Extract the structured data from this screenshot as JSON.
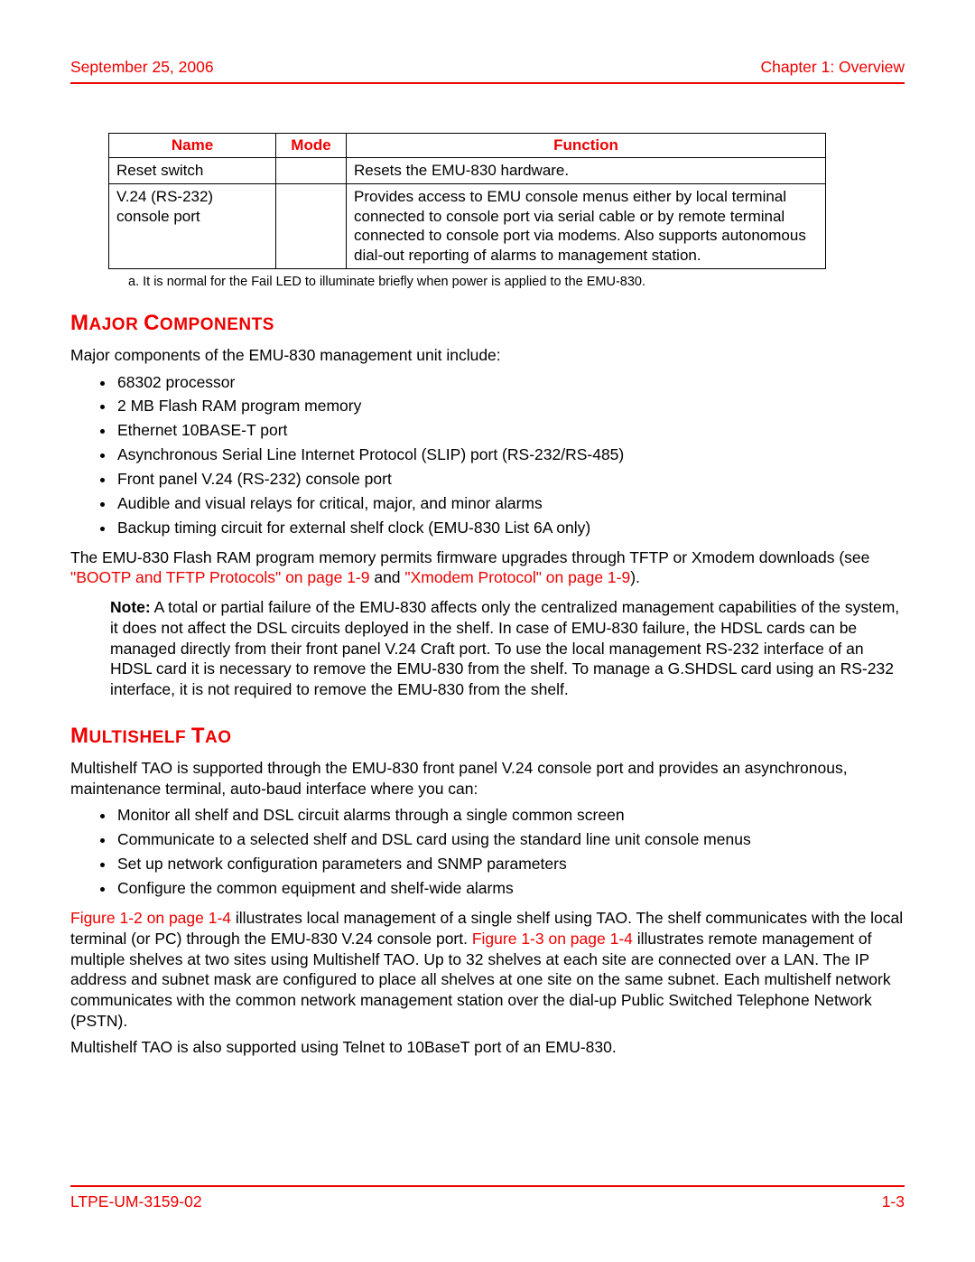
{
  "header": {
    "date": "September 25, 2006",
    "chapter": "Chapter 1: Overview"
  },
  "table": {
    "columns": [
      "Name",
      "Mode",
      "Function"
    ],
    "rows": [
      [
        "Reset switch",
        "",
        "Resets the EMU-830 hardware."
      ],
      [
        "V.24 (RS-232) console port",
        "",
        "Provides access to EMU console menus either by local terminal connected to console port via serial cable or by remote terminal connected to console port via modems. Also supports autonomous dial-out reporting of alarms to management station."
      ]
    ],
    "header_color": "#ee0000",
    "border_color": "#000000"
  },
  "footnote": "a. It is normal for the Fail LED to illuminate briefly when power is applied to the EMU-830.",
  "section1": {
    "title_initial1": "M",
    "title_rest1": "AJOR",
    "title_initial2": "C",
    "title_rest2": "OMPONENTS",
    "intro": "Major components of the EMU-830 management unit include:",
    "bullets": [
      "68302 processor",
      "2 MB Flash RAM program memory",
      "Ethernet 10BASE-T port",
      "Asynchronous Serial Line Internet Protocol (SLIP) port (RS-232/RS-485)",
      "Front panel V.24 (RS-232) console port",
      "Audible and visual relays for critical, major, and minor alarms",
      "Backup timing circuit for external shelf clock (EMU-830 List 6A only)"
    ],
    "para2_pre": "The EMU-830 Flash RAM program memory permits firmware upgrades through TFTP or Xmodem downloads (see ",
    "para2_link1": "\"BOOTP and TFTP Protocols\" on page 1-9",
    "para2_mid": " and ",
    "para2_link2": "\"Xmodem Protocol\" on page 1-9",
    "para2_post": ").",
    "note_label": "Note:",
    "note_body": " A total or partial failure of the EMU-830 affects only the centralized management capabilities of the system, it does not affect the DSL circuits deployed in the shelf. In case of EMU-830 failure, the HDSL cards can be managed directly from their front panel V.24 Craft port. To use the local management RS-232 interface of an HDSL card it is necessary to remove the EMU-830 from the shelf. To manage a G.SHDSL card using an RS-232 interface, it is not required to remove the EMU-830 from the shelf."
  },
  "section2": {
    "title_initial1": "M",
    "title_rest1": "ULTISHELF",
    "title_initial2": "T",
    "title_rest2": "AO",
    "intro": "Multishelf TAO is supported through the EMU-830 front panel V.24 console port and provides an asynchronous, maintenance terminal, auto-baud interface where you can:",
    "bullets": [
      "Monitor all shelf and DSL circuit alarms through a single common screen",
      "Communicate to a selected shelf and DSL card using the standard line unit console menus",
      "Set up network configuration parameters and SNMP parameters",
      "Configure the common equipment and shelf-wide alarms"
    ],
    "para2_link1": "Figure 1-2 on page 1-4",
    "para2_seg1": " illustrates local management of a single shelf using TAO. The shelf communicates with the local terminal (or PC) through the EMU-830 V.24 console port. ",
    "para2_link2": "Figure 1-3 on page 1-4",
    "para2_seg2": " illustrates remote management of multiple shelves at two sites using Multishelf TAO. Up to 32 shelves at each site are connected over a LAN. The IP address and subnet mask are configured to place all shelves at one site on the same subnet. Each multishelf network communicates with the common network management station over the dial-up Public Switched Telephone Network (PSTN).",
    "para3": "Multishelf TAO is also supported using Telnet to 10BaseT port of an EMU-830."
  },
  "footer": {
    "doc_id": "LTPE-UM-3159-02",
    "page_num": "1-3"
  },
  "colors": {
    "accent": "#ee0000",
    "text": "#000000",
    "background": "#ffffff"
  }
}
